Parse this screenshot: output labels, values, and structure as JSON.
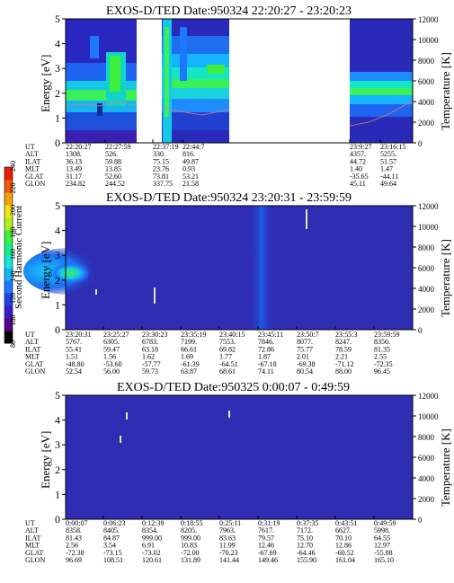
{
  "colorbar": {
    "label": "Second Harmonic Current",
    "ticks": [
      "80",
      "100",
      "120",
      "140",
      "160",
      "180",
      "200",
      "220",
      "240"
    ],
    "colors": [
      "#000000",
      "#5a0090",
      "#3a1ec8",
      "#1e46e6",
      "#1e78ff",
      "#14b4ff",
      "#14e6dc",
      "#14f08c",
      "#3cf03c",
      "#aaf01e",
      "#f0e614",
      "#f0a00a",
      "#f05a0a",
      "#e61e0a"
    ]
  },
  "chart_data": [
    {
      "type": "heatmap",
      "title": "EXOS-D/TED   Date:950324   22:20:27 - 23:20:23",
      "ylabel": "Energy [eV]",
      "y2label": "Temperature [K]",
      "ylim": [
        0,
        5
      ],
      "yticks": [
        "0",
        "1",
        "2",
        "3",
        "4",
        "5"
      ],
      "y2lim": [
        0,
        12000
      ],
      "y2ticks": [
        "0",
        "2000",
        "4000",
        "6000",
        "8000",
        "10000",
        "12000"
      ],
      "columns": [
        "22:20:27",
        "22:27:59",
        "22:37:19",
        "22:44:7",
        "23:9:27",
        "23:16:15"
      ],
      "rows": [
        {
          "label": "UT",
          "values": [
            "22:20:27",
            "22:27:59",
            "22:37:19",
            "22:44:7",
            "23:9:27",
            "23:16:15"
          ]
        },
        {
          "label": "ALT",
          "values": [
            "1308.",
            "526.",
            "330.",
            "816.",
            "4357.",
            "5255."
          ]
        },
        {
          "label": "ILAT",
          "values": [
            "36.13",
            "59.88",
            "75.15",
            "49.87",
            "44.72",
            "51.57"
          ]
        },
        {
          "label": "MLT",
          "values": [
            "13.49",
            "13.85",
            "23.76",
            "0.93",
            "1.40",
            "1.47"
          ]
        },
        {
          "label": "GLAT",
          "values": [
            "31.17",
            "52.60",
            "73.81",
            "53.21",
            "-35.65",
            "-44.11"
          ]
        },
        {
          "label": "GLON",
          "values": [
            "234.82",
            "244.52",
            "337.75",
            "21.58",
            "45.11",
            "49.64"
          ]
        }
      ]
    },
    {
      "type": "heatmap",
      "title": "EXOS-D/TED   Date:950324   23:20:31 - 23:59:59",
      "ylabel": "Energy [eV]",
      "y2label": "Temperature [K]",
      "ylim": [
        0,
        5
      ],
      "yticks": [
        "0",
        "1",
        "2",
        "3",
        "4",
        "5"
      ],
      "y2lim": [
        0,
        12000
      ],
      "y2ticks": [
        "0",
        "2000",
        "4000",
        "6000",
        "8000",
        "10000",
        "12000"
      ],
      "columns": [
        "23:20:31",
        "23:25:27",
        "23:30:23",
        "23:35:19",
        "23:40:15",
        "23:45:11",
        "23:50:7",
        "23:55:3",
        "23:59:59"
      ],
      "rows": [
        {
          "label": "UT",
          "values": [
            "23:20:31",
            "23:25:27",
            "23:30:23",
            "23:35:19",
            "23:40:15",
            "23:45:11",
            "23:50:7",
            "23:55:3",
            "23:59:59"
          ]
        },
        {
          "label": "ALT",
          "values": [
            "5767.",
            "6305.",
            "6783.",
            "7199.",
            "7553.",
            "7846.",
            "8077.",
            "8247.",
            "8356."
          ]
        },
        {
          "label": "ILAT",
          "values": [
            "55.41",
            "59.47",
            "63.18",
            "66.61",
            "69.82",
            "72.86",
            "75.77",
            "78.59",
            "81.35"
          ]
        },
        {
          "label": "MLT",
          "values": [
            "1.51",
            "1.56",
            "1.62",
            "1.69",
            "1.77",
            "1.87",
            "2.01",
            "2.21",
            "2.55"
          ]
        },
        {
          "label": "GLAT",
          "values": [
            "-48.80",
            "-53.60",
            "-57.77",
            "-61.39",
            "-64.51",
            "-67.18",
            "-69.38",
            "-71.12",
            "-72.35"
          ]
        },
        {
          "label": "GLON",
          "values": [
            "52.54",
            "56.00",
            "59.73",
            "63.87",
            "68.61",
            "74.11",
            "80.54",
            "88.00",
            "96.45"
          ]
        }
      ]
    },
    {
      "type": "heatmap",
      "title": "EXOS-D/TED   Date:950325   0:00:07 - 0:49:59",
      "ylabel": "Energy [eV]",
      "y2label": "Temperature [K]",
      "ylim": [
        0,
        5
      ],
      "yticks": [
        "0",
        "1",
        "2",
        "3",
        "4",
        "5"
      ],
      "y2lim": [
        0,
        12000
      ],
      "y2ticks": [
        "0",
        "2000",
        "4000",
        "6000",
        "8000",
        "10000",
        "12000"
      ],
      "columns": [
        "0:00:07",
        "0:06:23",
        "0:12:39",
        "0:18:55",
        "0:25:11",
        "0:31:19",
        "0:37:35",
        "0:43:51",
        "0:49:59"
      ],
      "rows": [
        {
          "label": "UT",
          "values": [
            "0:00:07",
            "0:06:23",
            "0:12:39",
            "0:18:55",
            "0:25:11",
            "0:31:19",
            "0:37:35",
            "0:43:51",
            "0:49:59"
          ]
        },
        {
          "label": "ALT",
          "values": [
            "8358.",
            "8405.",
            "8354.",
            "8205.",
            "7963.",
            "7617.",
            "7172.",
            "6627.",
            "5998."
          ]
        },
        {
          "label": "ILAT",
          "values": [
            "81.43",
            "84.87",
            "999.00",
            "999.00",
            "83.63",
            "79.57",
            "75.10",
            "70.10",
            "64.55"
          ]
        },
        {
          "label": "MLT",
          "values": [
            "2.56",
            "3.54",
            "6.91",
            "10.83",
            "11.99",
            "12.46",
            "12.70",
            "12.86",
            "12.97"
          ]
        },
        {
          "label": "GLAT",
          "values": [
            "-72.38",
            "-73.15",
            "-73.02",
            "-72.00",
            "-70.23",
            "-67.69",
            "-64.46",
            "-60.52",
            "-55.88"
          ]
        },
        {
          "label": "GLON",
          "values": [
            "96.69",
            "108.51",
            "120.61",
            "131.89",
            "141.44",
            "149.46",
            "155.90",
            "161.04",
            "165.10"
          ]
        }
      ]
    }
  ]
}
